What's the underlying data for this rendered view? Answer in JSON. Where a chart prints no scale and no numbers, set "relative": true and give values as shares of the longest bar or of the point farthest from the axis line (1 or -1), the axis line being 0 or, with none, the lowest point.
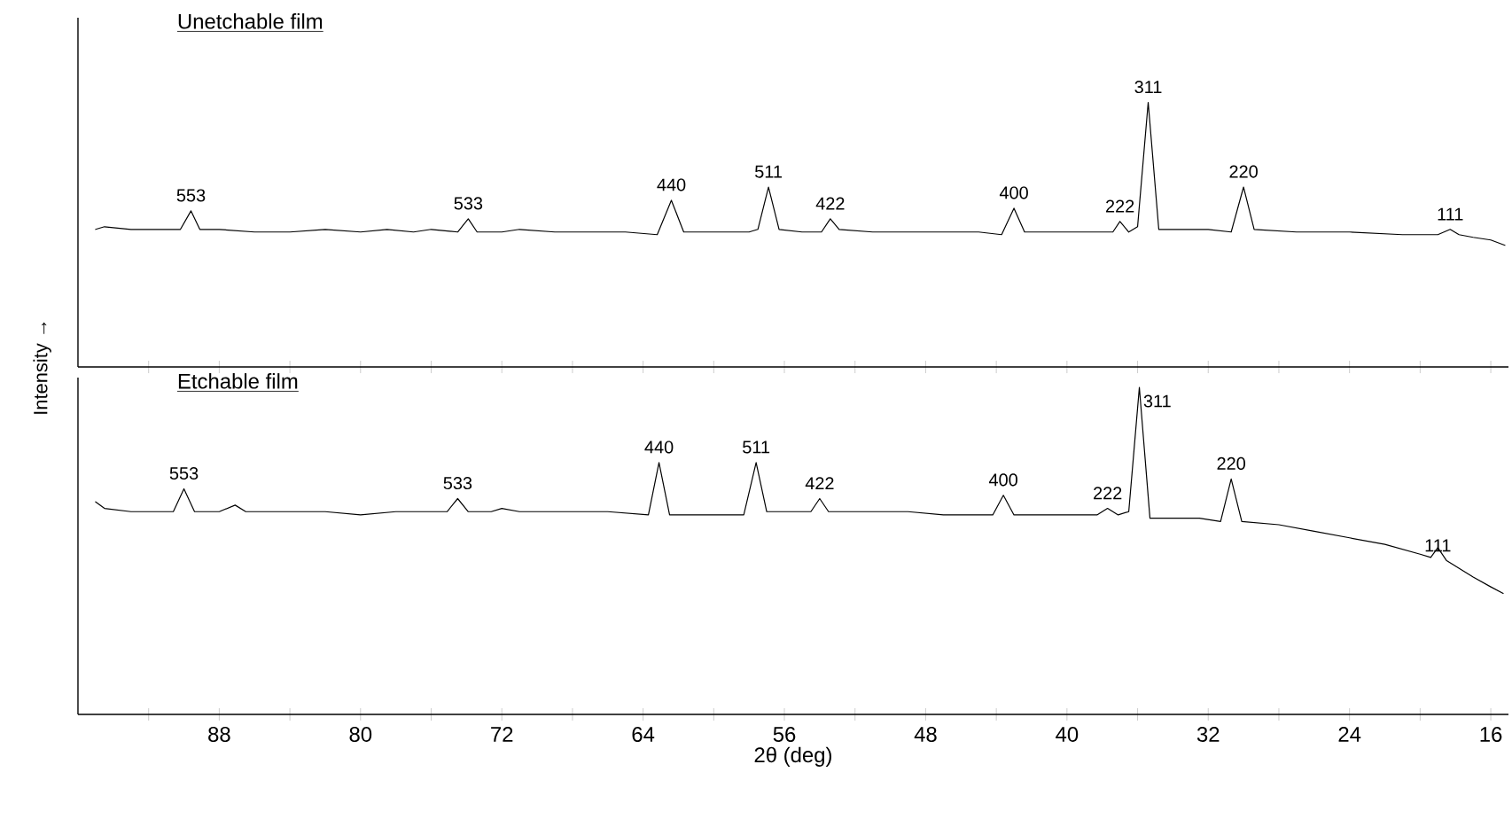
{
  "chart_data": [
    {
      "type": "line",
      "title": "Unetchable film",
      "ylabel": "Intensity →",
      "relative": true,
      "tick_labels": false,
      "color": "#000000",
      "xlim": [
        96,
        15
      ],
      "xticks": [
        {
          "value": 92,
          "label": null
        },
        {
          "value": 88,
          "label": null
        },
        {
          "value": 84,
          "label": null
        },
        {
          "value": 80,
          "label": null
        },
        {
          "value": 76,
          "label": null
        },
        {
          "value": 72,
          "label": null
        },
        {
          "value": 68,
          "label": null
        },
        {
          "value": 64,
          "label": null
        },
        {
          "value": 60,
          "label": null
        },
        {
          "value": 56,
          "label": null
        },
        {
          "value": 52,
          "label": null
        },
        {
          "value": 48,
          "label": null
        },
        {
          "value": 44,
          "label": null
        },
        {
          "value": 40,
          "label": null
        },
        {
          "value": 36,
          "label": null
        },
        {
          "value": 32,
          "label": null
        },
        {
          "value": 28,
          "label": null
        },
        {
          "value": 24,
          "label": null
        },
        {
          "value": 20,
          "label": null
        },
        {
          "value": 16,
          "label": null
        }
      ],
      "x": [
        95,
        94.5,
        93,
        92,
        91,
        90.2,
        89.6,
        89.1,
        88,
        86,
        84,
        82,
        80,
        78.5,
        77,
        76,
        74.5,
        73.9,
        73.4,
        72,
        71,
        69,
        67,
        65,
        63.2,
        62.4,
        61.7,
        60,
        58,
        57.5,
        56.9,
        56.3,
        55,
        53.9,
        53.4,
        52.9,
        51,
        49,
        47,
        45,
        43.7,
        43.0,
        42.4,
        40,
        38,
        37.4,
        37.0,
        36.5,
        36.0,
        35.4,
        34.8,
        33,
        32,
        30.7,
        30.0,
        29.4,
        27,
        24,
        21,
        19,
        18.3,
        17.8,
        17,
        16,
        15.2
      ],
      "values": [
        0.52,
        0.53,
        0.52,
        0.52,
        0.52,
        0.52,
        0.59,
        0.52,
        0.52,
        0.51,
        0.51,
        0.52,
        0.51,
        0.52,
        0.51,
        0.52,
        0.51,
        0.56,
        0.51,
        0.51,
        0.52,
        0.51,
        0.51,
        0.51,
        0.5,
        0.63,
        0.51,
        0.51,
        0.51,
        0.52,
        0.68,
        0.52,
        0.51,
        0.51,
        0.56,
        0.52,
        0.51,
        0.51,
        0.51,
        0.51,
        0.5,
        0.6,
        0.51,
        0.51,
        0.51,
        0.51,
        0.55,
        0.51,
        0.53,
        1,
        0.52,
        0.52,
        0.52,
        0.51,
        0.68,
        0.52,
        0.51,
        0.51,
        0.5,
        0.5,
        0.52,
        0.5,
        0.49,
        0.48,
        0.46
      ],
      "annotations": [
        {
          "text": "553",
          "x": 89.6,
          "y": 0.59
        },
        {
          "text": "533",
          "x": 73.9,
          "y": 0.56
        },
        {
          "text": "440",
          "x": 62.4,
          "y": 0.63
        },
        {
          "text": "511",
          "x": 56.9,
          "y": 0.68
        },
        {
          "text": "422",
          "x": 53.4,
          "y": 0.56
        },
        {
          "text": "400",
          "x": 43.0,
          "y": 0.6
        },
        {
          "text": "222",
          "x": 37.0,
          "y": 0.55
        },
        {
          "text": "311",
          "x": 35.4,
          "y": 1
        },
        {
          "text": "220",
          "x": 30.0,
          "y": 0.68
        },
        {
          "text": "111",
          "x": 18.3,
          "y": 0.52
        }
      ]
    },
    {
      "type": "line",
      "title": "Etchable film",
      "xlabel": "2θ (deg)",
      "relative": true,
      "tick_labels": "x",
      "color": "#000000",
      "xlim": [
        96,
        15
      ],
      "xticks": [
        {
          "value": 92,
          "label": null
        },
        88,
        {
          "value": 84,
          "label": null
        },
        80,
        {
          "value": 76,
          "label": null
        },
        72,
        {
          "value": 68,
          "label": null
        },
        64,
        {
          "value": 60,
          "label": null
        },
        56,
        {
          "value": 52,
          "label": null
        },
        48,
        {
          "value": 44,
          "label": null
        },
        40,
        {
          "value": 36,
          "label": null
        },
        32,
        {
          "value": 28,
          "label": null
        },
        24,
        {
          "value": 20,
          "label": null
        },
        16
      ],
      "x": [
        95,
        94.5,
        93,
        91,
        90.6,
        90.0,
        89.4,
        88,
        87.1,
        86.5,
        84,
        82,
        80,
        78,
        76,
        75.1,
        74.5,
        73.9,
        72.6,
        72,
        71,
        68,
        66,
        63.7,
        63.1,
        62.5,
        60,
        58.3,
        57.6,
        57.0,
        55,
        54.5,
        54.0,
        53.5,
        51,
        49,
        47,
        44.2,
        43.6,
        43.0,
        40,
        38.3,
        37.7,
        37.1,
        36.5,
        35.9,
        35.3,
        34,
        32.5,
        31.3,
        30.7,
        30.1,
        28,
        26,
        24,
        22,
        20,
        19.4,
        19.0,
        18.5,
        17,
        16,
        15.3
      ],
      "values": [
        0.65,
        0.63,
        0.62,
        0.62,
        0.62,
        0.69,
        0.62,
        0.62,
        0.64,
        0.62,
        0.62,
        0.62,
        0.61,
        0.62,
        0.62,
        0.62,
        0.66,
        0.62,
        0.62,
        0.63,
        0.62,
        0.62,
        0.62,
        0.61,
        0.77,
        0.61,
        0.61,
        0.61,
        0.77,
        0.62,
        0.62,
        0.62,
        0.66,
        0.62,
        0.62,
        0.62,
        0.61,
        0.61,
        0.67,
        0.61,
        0.61,
        0.61,
        0.63,
        0.61,
        0.62,
        1,
        0.6,
        0.6,
        0.6,
        0.59,
        0.72,
        0.59,
        0.58,
        0.56,
        0.54,
        0.52,
        0.49,
        0.48,
        0.51,
        0.47,
        0.42,
        0.39,
        0.37
      ],
      "annotations": [
        {
          "text": "553",
          "x": 90.0,
          "y": 0.69
        },
        {
          "text": "533",
          "x": 74.5,
          "y": 0.66
        },
        {
          "text": "440",
          "x": 63.1,
          "y": 0.77
        },
        {
          "text": "511",
          "x": 57.6,
          "y": 0.77
        },
        {
          "text": "422",
          "x": 54.0,
          "y": 0.66
        },
        {
          "text": "400",
          "x": 43.6,
          "y": 0.67
        },
        {
          "text": "222",
          "x": 37.7,
          "y": 0.63
        },
        {
          "text": "311",
          "x": 35.9,
          "y": 1
        },
        {
          "text": "220",
          "x": 30.7,
          "y": 0.72
        },
        {
          "text": "111",
          "x": 19.0,
          "y": 0.47
        }
      ]
    }
  ]
}
